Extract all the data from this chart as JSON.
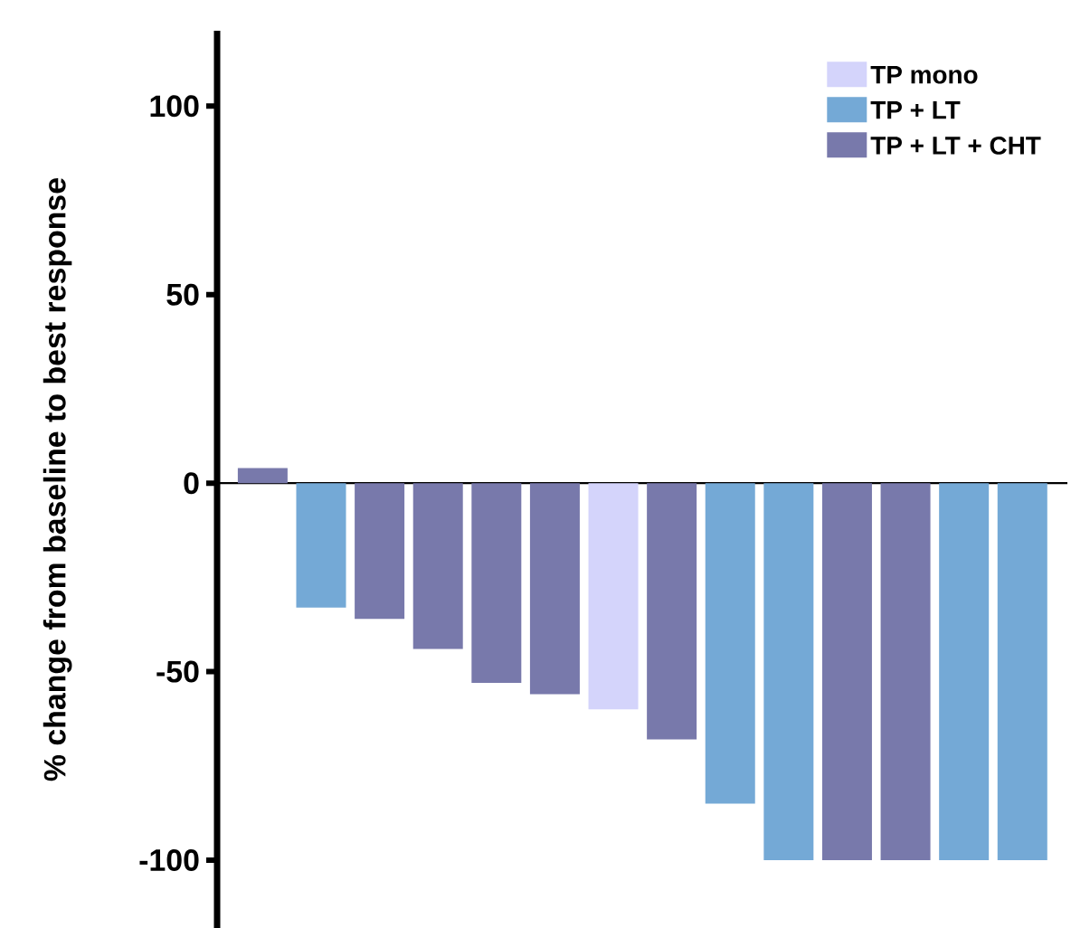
{
  "chart_data": {
    "type": "bar",
    "ylabel": "% change from baseline to best response",
    "categories": [
      null,
      null,
      null,
      null,
      null,
      null,
      null,
      null,
      null,
      null,
      null,
      null,
      null,
      null
    ],
    "series": [
      {
        "name": "TP mono",
        "color": "#d4d4fb",
        "values": [
          null,
          null,
          null,
          null,
          null,
          null,
          -60,
          null,
          null,
          null,
          null,
          null,
          null,
          null
        ]
      },
      {
        "name": "TP + LT",
        "color": "#74a9d6",
        "values": [
          null,
          -33,
          null,
          null,
          null,
          null,
          null,
          null,
          -85,
          -100,
          null,
          null,
          -100,
          -100
        ]
      },
      {
        "name": "TP + LT + CHT",
        "color": "#7879ab",
        "values": [
          4,
          null,
          -36,
          -44,
          -53,
          -56,
          null,
          -68,
          null,
          null,
          -100,
          -100,
          null,
          null
        ]
      }
    ],
    "ylim": [
      -118,
      120
    ],
    "yticks": [
      -100,
      -50,
      0,
      50,
      100
    ],
    "legend": "top right",
    "tick_labels": "y"
  }
}
